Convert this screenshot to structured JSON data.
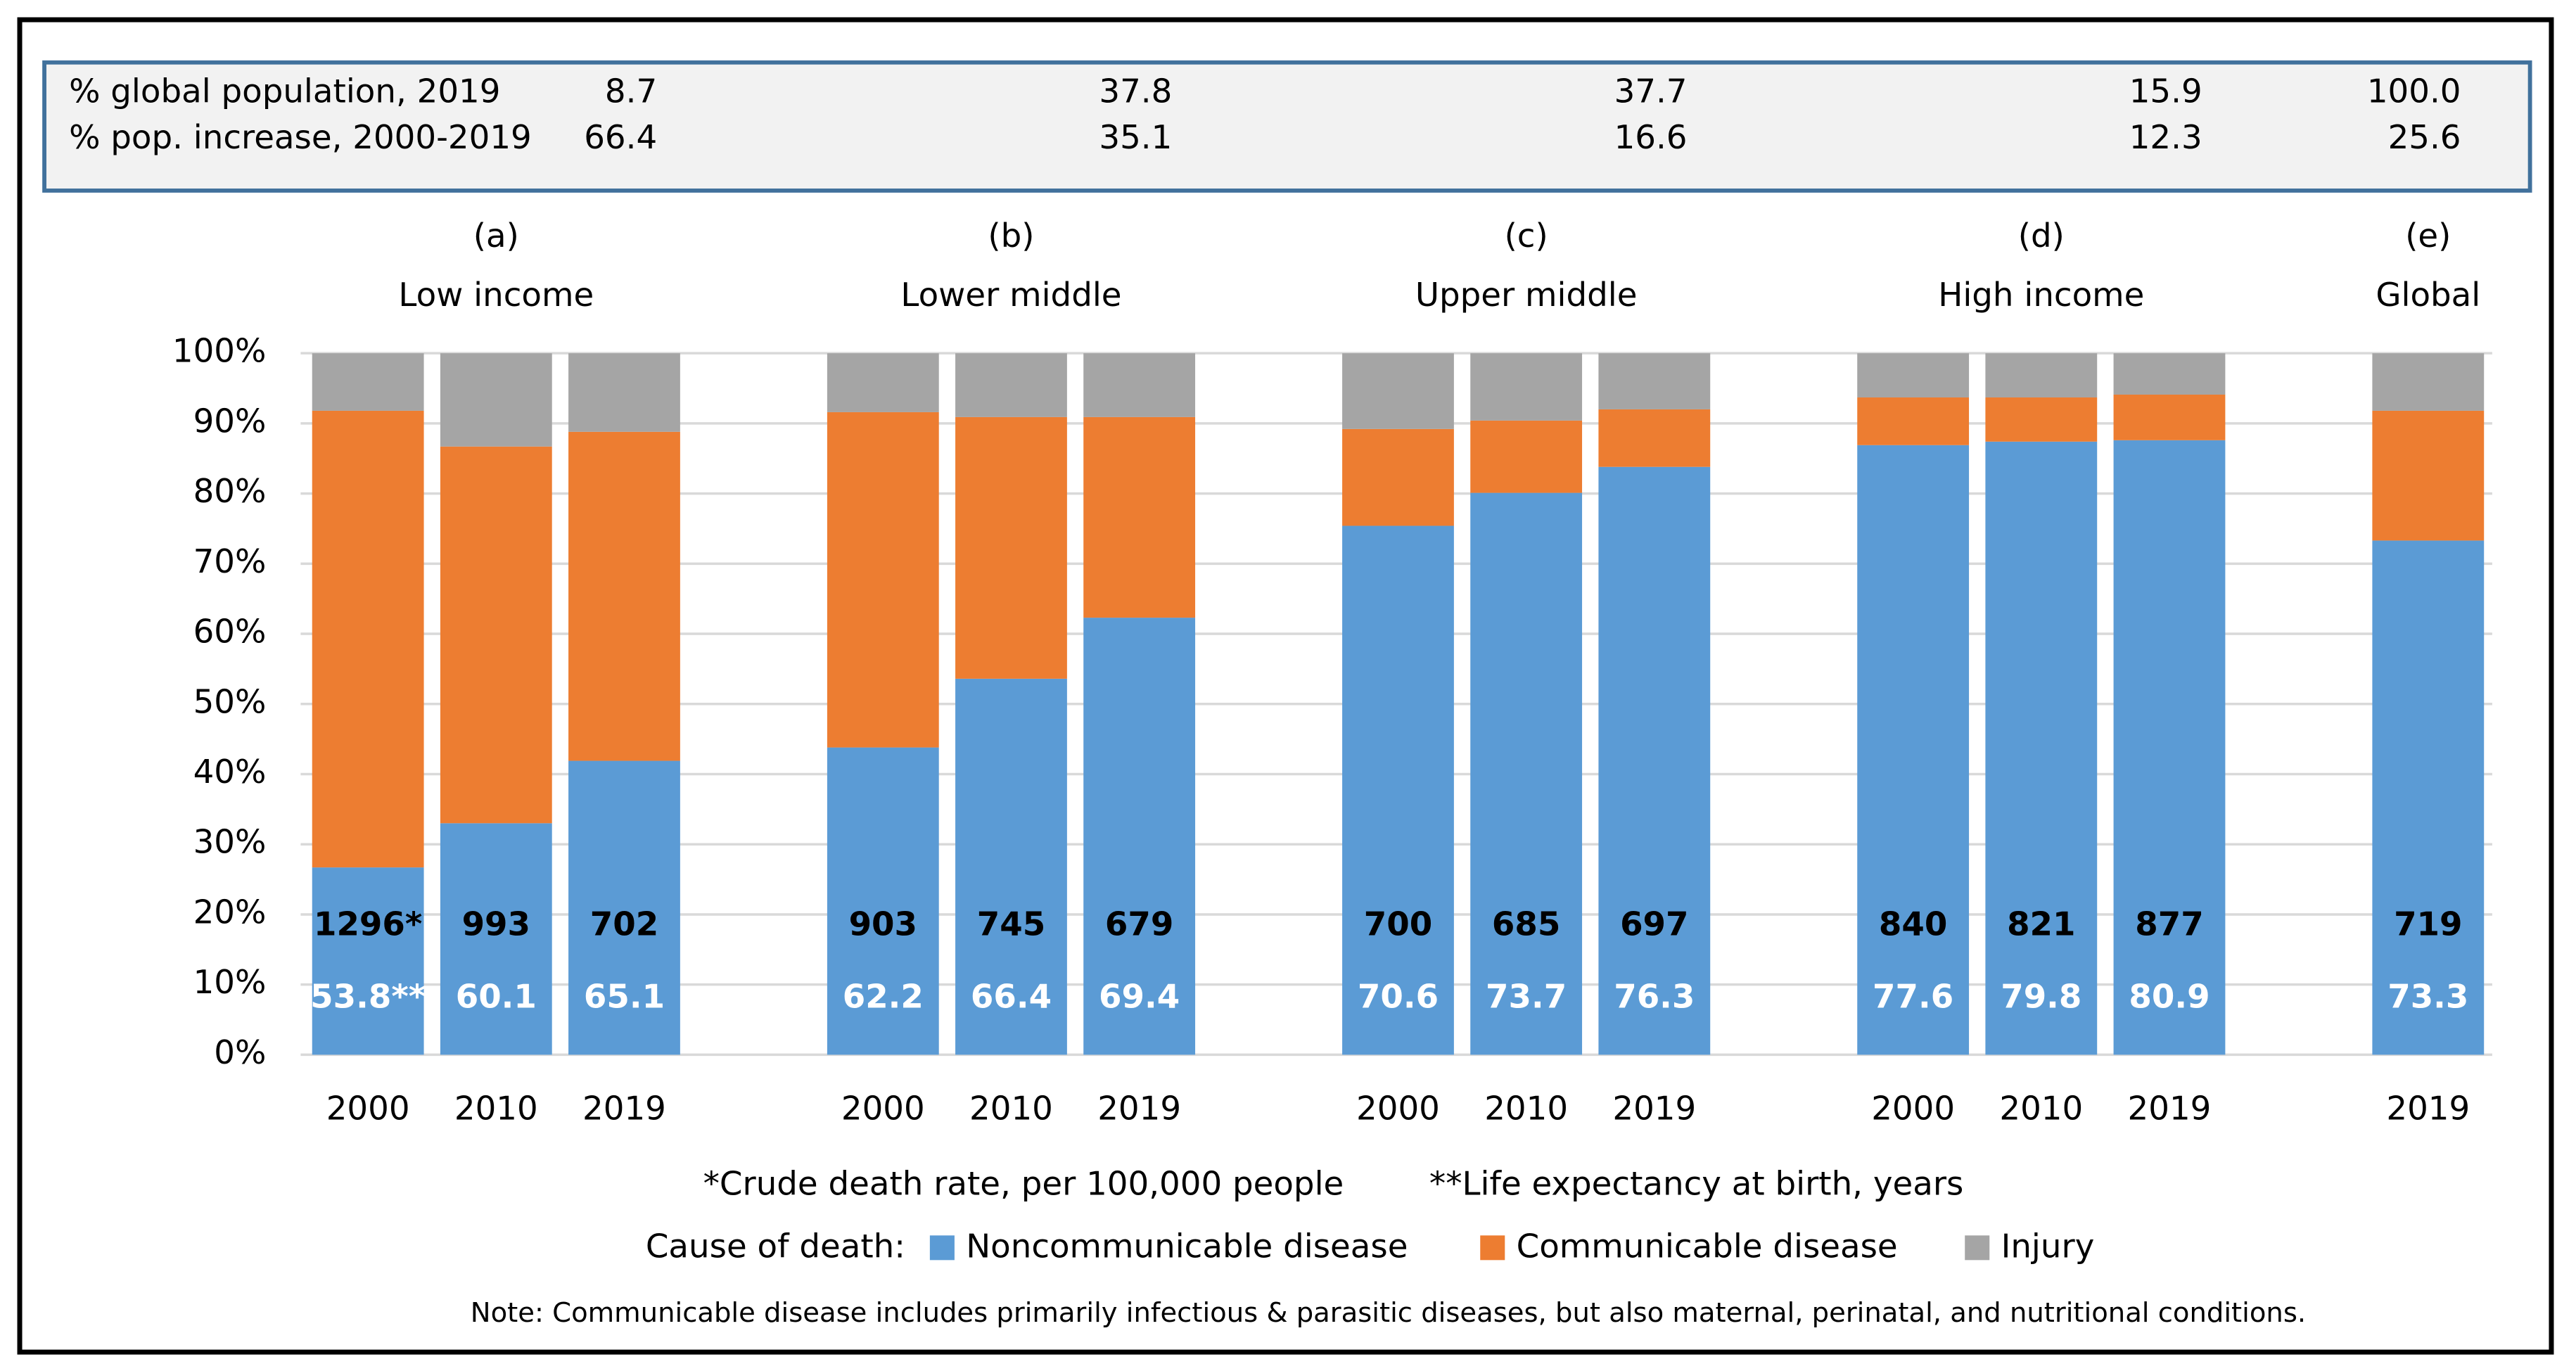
{
  "table": {
    "rows": [
      {
        "label": "% global population, 2019",
        "cells": [
          "8.7",
          "37.8",
          "37.7",
          "15.9",
          "100.0"
        ]
      },
      {
        "label": "% pop. increase, 2000-2019",
        "cells": [
          "66.4",
          "35.1",
          "16.6",
          "12.3",
          "25.6"
        ]
      }
    ]
  },
  "chart_data": {
    "type": "bar",
    "stacked": true,
    "groups": [
      {
        "letter": "(a)",
        "name": "Low income",
        "categories": [
          "2000",
          "2010",
          "2019"
        ],
        "death_rate": {
          "values": [
            1296,
            993,
            702
          ],
          "value_labels": [
            "1296*",
            "993",
            "702"
          ]
        },
        "life_expectancy": {
          "values": [
            53.8,
            60.1,
            65.1
          ],
          "value_labels": [
            "53.8**",
            "60.1",
            "65.1"
          ]
        }
      },
      {
        "letter": "(b)",
        "name": "Lower middle",
        "categories": [
          "2000",
          "2010",
          "2019"
        ],
        "death_rate": {
          "values": [
            903,
            745,
            679
          ],
          "value_labels": [
            "903",
            "745",
            "679"
          ]
        },
        "life_expectancy": {
          "values": [
            62.2,
            66.4,
            69.4
          ],
          "value_labels": [
            "62.2",
            "66.4",
            "69.4"
          ]
        }
      },
      {
        "letter": "(c)",
        "name": "Upper middle",
        "categories": [
          "2000",
          "2010",
          "2019"
        ],
        "death_rate": {
          "values": [
            700,
            685,
            697
          ],
          "value_labels": [
            "700",
            "685",
            "697"
          ]
        },
        "life_expectancy": {
          "values": [
            70.6,
            73.7,
            76.3
          ],
          "value_labels": [
            "70.6",
            "73.7",
            "76.3"
          ]
        }
      },
      {
        "letter": "(d)",
        "name": "High income",
        "categories": [
          "2000",
          "2010",
          "2019"
        ],
        "death_rate": {
          "values": [
            840,
            821,
            877
          ],
          "value_labels": [
            "840",
            "821",
            "877"
          ]
        },
        "life_expectancy": {
          "values": [
            77.6,
            79.8,
            80.9
          ],
          "value_labels": [
            "77.6",
            "79.8",
            "80.9"
          ]
        }
      },
      {
        "letter": "(e)",
        "name": "Global",
        "categories": [
          "2019"
        ],
        "death_rate": {
          "values": [
            719
          ],
          "value_labels": [
            "719"
          ]
        },
        "life_expectancy": {
          "values": [
            73.3
          ],
          "value_labels": [
            "73.3"
          ]
        }
      }
    ],
    "series": [
      {
        "name": "Noncommunicable disease",
        "color": "#5b9bd5",
        "values": [
          26.7,
          33.0,
          41.9,
          43.8,
          53.6,
          62.3,
          75.4,
          80.1,
          83.8,
          86.9,
          87.4,
          87.6,
          73.3
        ]
      },
      {
        "name": "Communicable disease",
        "color": "#ed7d31",
        "values": [
          65.1,
          53.7,
          46.9,
          47.8,
          37.3,
          28.6,
          13.8,
          10.3,
          8.2,
          6.8,
          6.3,
          6.5,
          18.5
        ]
      },
      {
        "name": "Injury",
        "color": "#a5a5a5",
        "values": [
          8.2,
          13.3,
          11.2,
          8.4,
          9.1,
          9.1,
          10.8,
          9.6,
          8.0,
          6.3,
          6.3,
          5.9,
          8.2
        ]
      }
    ],
    "ylim": [
      0,
      100
    ],
    "yticks": [
      {
        "value": 0,
        "label": "0%"
      },
      {
        "value": 10,
        "label": "10%"
      },
      {
        "value": 20,
        "label": "20%"
      },
      {
        "value": 30,
        "label": "30%"
      },
      {
        "value": 40,
        "label": "40%"
      },
      {
        "value": 50,
        "label": "50%"
      },
      {
        "value": 60,
        "label": "60%"
      },
      {
        "value": 70,
        "label": "70%"
      },
      {
        "value": 80,
        "label": "80%"
      },
      {
        "value": 90,
        "label": "90%"
      },
      {
        "value": 100,
        "label": "100%"
      }
    ],
    "grid": true,
    "footnotes": [
      "*Crude death rate, per 100,000 people",
      "**Life expectancy at birth, years"
    ],
    "legend_title": "Cause of death:",
    "note": "Note: Communicable disease includes primarily infectious & parasitic diseases, but also maternal, perinatal, and nutritional conditions."
  }
}
